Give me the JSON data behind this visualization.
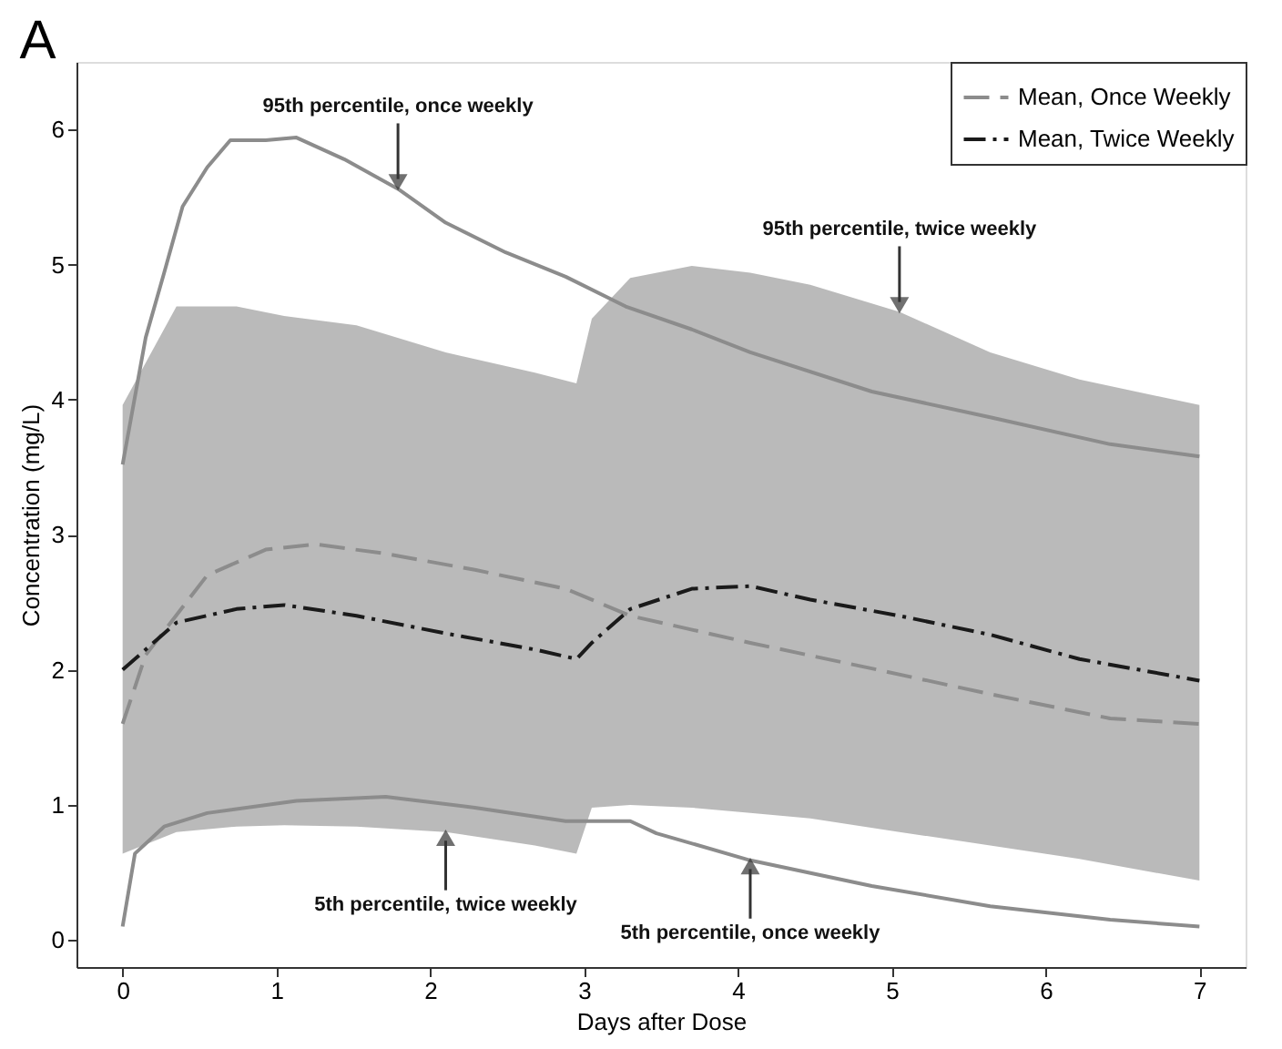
{
  "chart_data": {
    "type": "line",
    "title": "A",
    "xlabel": "Days after Dose",
    "ylabel": "Concentration (mg/L)",
    "xlim": [
      -0.3,
      7.3
    ],
    "ylim": [
      -0.2,
      6.5
    ],
    "xticks": [
      0,
      1,
      2,
      3,
      4,
      5,
      6,
      7
    ],
    "yticks": [
      0,
      1,
      2,
      3,
      4,
      5,
      6
    ],
    "grid": false,
    "legend": "top right",
    "marker": "none",
    "series": [
      {
        "color": "#8c8c8c",
        "line_style": "solid",
        "x": [
          0,
          0.15,
          0.27,
          0.39,
          0.55,
          0.7,
          0.93,
          1.13,
          1.44,
          1.79,
          2.1,
          2.49,
          2.88,
          3.27,
          3.7,
          4.08,
          4.87,
          5.64,
          6.42,
          7
        ],
        "values": [
          3.52,
          4.46,
          4.94,
          5.43,
          5.72,
          5.92,
          5.92,
          5.94,
          5.78,
          5.56,
          5.31,
          5.09,
          4.91,
          4.69,
          4.52,
          4.35,
          4.06,
          3.87,
          3.67,
          3.58
        ]
      },
      {
        "name": "Mean, Once Weekly",
        "color": "#8c8c8c",
        "line_style": "dashed",
        "x": [
          0,
          0.15,
          0.55,
          0.93,
          1.25,
          1.71,
          2.29,
          2.88,
          3.3,
          4.08,
          4.87,
          5.64,
          6.42,
          7
        ],
        "values": [
          1.6,
          2.11,
          2.7,
          2.89,
          2.93,
          2.86,
          2.74,
          2.6,
          2.4,
          2.2,
          2.01,
          1.82,
          1.64,
          1.6
        ]
      },
      {
        "name": "Mean, Twice Weekly",
        "color": "#1a1a1a",
        "line_style": "dashdot",
        "x": [
          0,
          0.35,
          0.74,
          1.05,
          1.52,
          2.1,
          2.68,
          2.95,
          3.05,
          3.3,
          3.7,
          4.08,
          4.47,
          5.05,
          5.64,
          6.22,
          7
        ],
        "values": [
          2.0,
          2.35,
          2.45,
          2.48,
          2.4,
          2.27,
          2.15,
          2.08,
          2.2,
          2.45,
          2.6,
          2.62,
          2.52,
          2.4,
          2.26,
          2.08,
          1.92
        ],
        "upper": [
          3.96,
          4.69,
          4.69,
          4.62,
          4.55,
          4.35,
          4.2,
          4.12,
          4.6,
          4.9,
          4.99,
          4.94,
          4.85,
          4.65,
          4.35,
          4.15,
          3.96
        ],
        "lower": [
          0.64,
          0.8,
          0.84,
          0.85,
          0.84,
          0.8,
          0.7,
          0.64,
          0.98,
          1.0,
          0.98,
          0.94,
          0.9,
          0.8,
          0.7,
          0.6,
          0.44
        ]
      },
      {
        "color": "#8c8c8c",
        "line_style": "solid",
        "x": [
          0,
          0.08,
          0.27,
          0.55,
          1.13,
          1.71,
          2.29,
          2.88,
          3.3,
          3.47,
          4.08,
          4.87,
          5.64,
          6.42,
          7
        ],
        "values": [
          0.1,
          0.64,
          0.84,
          0.94,
          1.03,
          1.06,
          0.98,
          0.88,
          0.88,
          0.79,
          0.59,
          0.4,
          0.25,
          0.15,
          0.1
        ]
      }
    ],
    "annotations": [
      {
        "text": "95th percentile, once weekly",
        "x": 1.79,
        "y": 5.56
      },
      {
        "text": "95th percentile, twice weekly",
        "x": 5.05,
        "y": 4.65
      },
      {
        "text": "5th percentile, twice weekly",
        "x": 2.1,
        "y": 0.8
      },
      {
        "text": "5th percentile, once weekly",
        "x": 4.08,
        "y": 0.59
      }
    ]
  }
}
